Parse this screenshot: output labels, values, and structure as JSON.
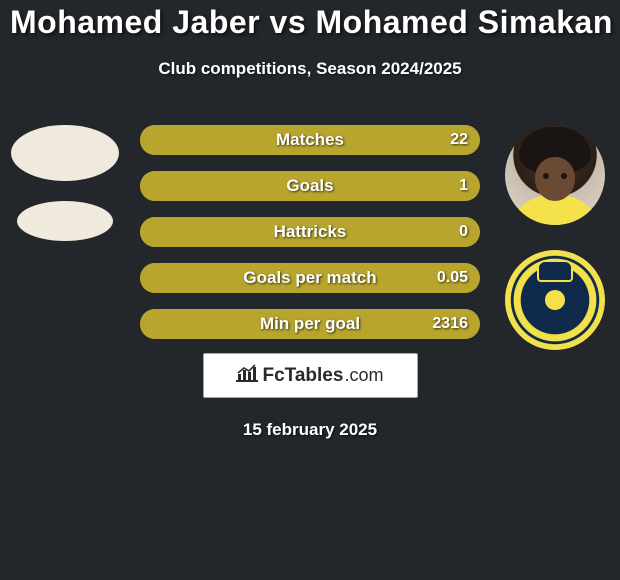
{
  "background_color": "#23272b",
  "title": {
    "text": "Mohamed Jaber vs Mohamed Simakan",
    "color": "#ffffff",
    "fontsize": 32
  },
  "subtitle": {
    "text": "Club competitions, Season 2024/2025",
    "color": "#ffffff",
    "fontsize": 17
  },
  "colors": {
    "left": "#8a8e1f",
    "right": "#b7a52d"
  },
  "bar": {
    "height": 30,
    "radius": 15,
    "gap": 16,
    "label_fontsize": 17,
    "value_fontsize": 16
  },
  "rows": [
    {
      "label": "Matches",
      "left": "",
      "right": "22",
      "left_pct": 0,
      "right_pct": 100
    },
    {
      "label": "Goals",
      "left": "",
      "right": "1",
      "left_pct": 0,
      "right_pct": 100
    },
    {
      "label": "Hattricks",
      "left": "",
      "right": "0",
      "left_pct": 0,
      "right_pct": 100
    },
    {
      "label": "Goals per match",
      "left": "",
      "right": "0.05",
      "left_pct": 0,
      "right_pct": 100
    },
    {
      "label": "Min per goal",
      "left": "",
      "right": "2316",
      "left_pct": 0,
      "right_pct": 100
    }
  ],
  "logo": {
    "brand_fc": "Fc",
    "brand_tables": "Tables",
    "brand_dotcom": ".com",
    "fontsize": 19,
    "bg": "#ffffff",
    "border": "#aaa69b",
    "icon_color": "#2a2a2a"
  },
  "date": {
    "text": "15 february 2025",
    "fontsize": 17,
    "margin_top": 22
  }
}
